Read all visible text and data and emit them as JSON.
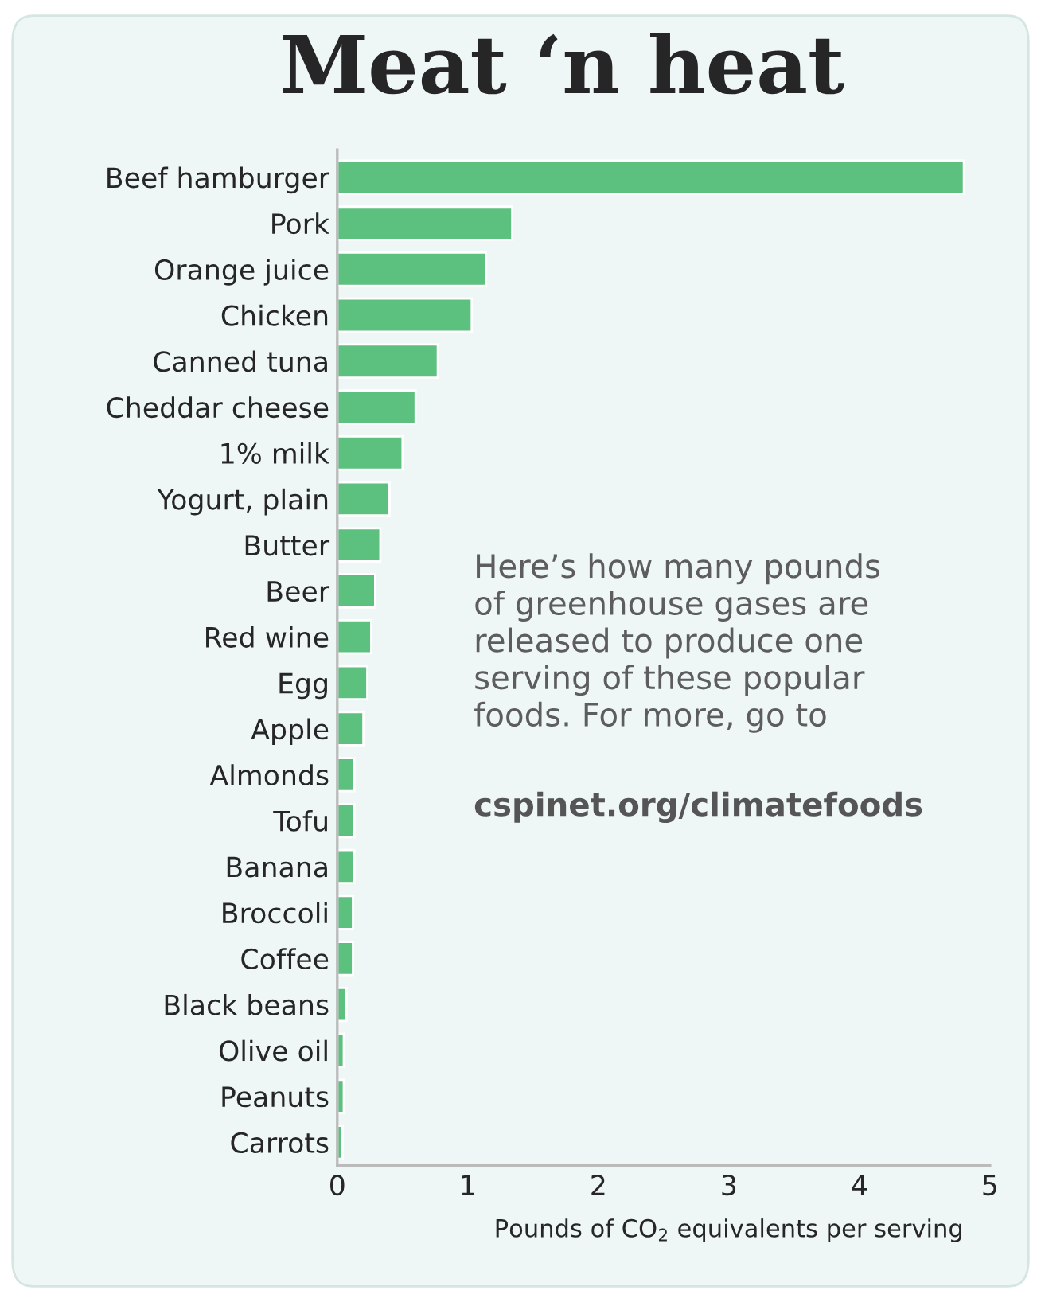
{
  "chart_data": {
    "type": "bar",
    "orientation": "horizontal",
    "title": "Meat ‘n heat",
    "categories": [
      "Beef hamburger",
      "Pork",
      "Orange juice",
      "Chicken",
      "Canned tuna",
      "Cheddar cheese",
      "1% milk",
      "Yogurt, plain",
      "Butter",
      "Beer",
      "Red wine",
      "Egg",
      "Apple",
      "Almonds",
      "Tofu",
      "Banana",
      "Broccoli",
      "Coffee",
      "Black beans",
      "Olive oil",
      "Peanuts",
      "Carrots"
    ],
    "values": [
      4.8,
      1.34,
      1.14,
      1.03,
      0.77,
      0.6,
      0.5,
      0.4,
      0.33,
      0.29,
      0.26,
      0.23,
      0.2,
      0.13,
      0.13,
      0.13,
      0.12,
      0.12,
      0.07,
      0.05,
      0.05,
      0.04
    ],
    "color": "#5cc17f",
    "xlim": [
      0,
      5
    ],
    "xticks": [
      0,
      1,
      2,
      3,
      4,
      5
    ],
    "xlabel": "Pounds of CO$_{2}$ equivalents per serving",
    "annotations": [
      "Here’s how many pounds\nof greenhouse gases are\nreleased to produce one\nserving of these popular\nfoods. For more, go to",
      "cspinet.org/climatefoods"
    ],
    "grid": false,
    "legend": false
  }
}
